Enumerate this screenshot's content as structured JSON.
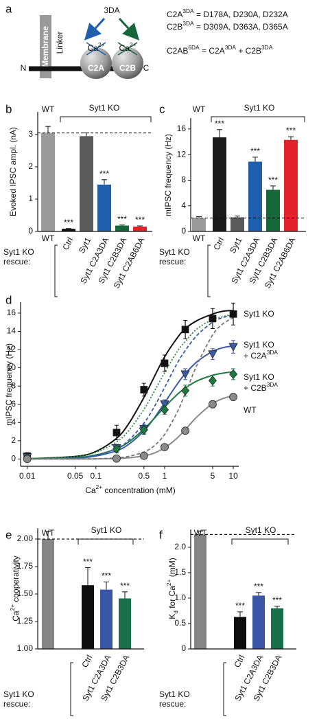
{
  "diagram": {
    "panel_label": "a",
    "membrane": "Membrane",
    "linker": "Linker",
    "n_term": "N",
    "c_term": "C",
    "domains": [
      "C2A",
      "C2B"
    ],
    "ion": [
      {
        "text": "Ca"
      },
      {
        "text": "2+",
        "sup": true
      }
    ],
    "mutation": "3DA",
    "equations": [
      [
        {
          "text": "C2A"
        },
        {
          "text": "3DA",
          "sup": true
        },
        {
          "text": " = D178A, D230A, D232A"
        }
      ],
      [
        {
          "text": "C2B"
        },
        {
          "text": "3DA",
          "sup": true
        },
        {
          "text": " = D309A, D363A, D365A"
        }
      ],
      [
        {
          "text": "C2AB"
        },
        {
          "text": "6DA",
          "sup": true
        },
        {
          "text": " = C2A"
        },
        {
          "text": "3DA",
          "sup": true
        },
        {
          "text": " + C2B"
        },
        {
          "text": "3DA",
          "sup": true
        }
      ]
    ]
  },
  "chart_data": [
    {
      "type": "bar",
      "panel_label": "b",
      "ylabel": [
        {
          "text": "Evoked IPSC ampl. (nA)"
        }
      ],
      "control_label": "WT",
      "group_label": "Syt1 KO",
      "row_label": [
        "Syt1 KO",
        "rescue:"
      ],
      "categories": [
        "WT",
        "Ctrl",
        "Syt1",
        "Syt1 C2A3DA",
        "Syt1 C2B3DA",
        "Syt1 C2AB6DA"
      ],
      "values": [
        3.05,
        0.08,
        2.95,
        1.45,
        0.18,
        0.15
      ],
      "errors": [
        0.2,
        0.01,
        0.1,
        0.15,
        0.02,
        0.02
      ],
      "colors": [
        "#9b9b9b",
        "#111111",
        "#5a5a5a",
        "#1f5fae",
        "#16663a",
        "#e3232b"
      ],
      "significance": [
        null,
        "***",
        null,
        "***",
        "***",
        "***"
      ],
      "reference_line": 3.05,
      "ylim": [
        0,
        3.7
      ],
      "yticks": [
        0,
        1,
        2,
        3
      ]
    },
    {
      "type": "bar",
      "panel_label": "c",
      "ylabel": [
        {
          "text": "mIPSC frequency (Hz)"
        }
      ],
      "control_label": "WT",
      "group_label": "Syt1 KO",
      "row_label": [
        "Syt1 KO",
        "rescue:"
      ],
      "categories": [
        "WT",
        "Ctrl",
        "Syt1",
        "Syt1 C2A3DA",
        "Syt1 C2B3DA",
        "Syt1 C2AB6DA"
      ],
      "values": [
        2.1,
        14.7,
        2.2,
        10.9,
        6.5,
        14.3
      ],
      "errors": [
        0.2,
        1.2,
        0.2,
        0.7,
        0.6,
        0.5
      ],
      "colors": [
        "#9b9b9b",
        "#1a1a1a",
        "#5a5a5a",
        "#1f5fae",
        "#16663a",
        "#e3232b"
      ],
      "significance": [
        null,
        "***",
        null,
        "***",
        "***",
        "***"
      ],
      "reference_line": 2.1,
      "ylim": [
        0,
        17.7
      ],
      "yticks": [
        0,
        4,
        8,
        12,
        16
      ]
    },
    {
      "type": "scatter",
      "panel_label": "d",
      "log_x": true,
      "xlabel": [
        {
          "text": "Ca"
        },
        {
          "text": "2+",
          "sup": true
        },
        {
          "text": " concentration (mM)"
        }
      ],
      "ylabel": [
        {
          "text": "mIPSC frequency (Hz)"
        }
      ],
      "x": [
        0.01,
        0.2,
        0.5,
        1,
        2,
        5,
        10
      ],
      "xlim": [
        0.008,
        12
      ],
      "xticks": [
        0.01,
        0.05,
        0.1,
        0.5,
        1,
        5,
        10
      ],
      "ylim": [
        -0.8,
        17.2
      ],
      "yticks": [
        0,
        2,
        4,
        6,
        8,
        10,
        12,
        14,
        16
      ],
      "series": [
        {
          "name_lines": [
            [
              {
                "text": "Syt1 KO"
              }
            ]
          ],
          "color": "#111111",
          "marker": "square",
          "values": [
            0.3,
            2.9,
            7.6,
            10.5,
            14.2,
            15.4,
            15.9
          ],
          "errors": [
            0.4,
            0.8,
            0.7,
            0.9,
            1.0,
            1.1,
            1.2
          ]
        },
        {
          "name_lines": [
            [
              {
                "text": "Syt1 KO"
              }
            ],
            [
              {
                "text": "+ C2A"
              },
              {
                "text": "3DA",
                "sup": true
              }
            ]
          ],
          "color": "#3b5ba5",
          "marker": "triangle",
          "values": [
            0.2,
            1.2,
            3.3,
            6.0,
            9.3,
            11.5,
            12.3
          ],
          "errors": [
            0.3,
            0.4,
            0.5,
            0.5,
            0.6,
            0.6,
            0.7
          ]
        },
        {
          "name_lines": [
            [
              {
                "text": "Syt1 KO"
              }
            ],
            [
              {
                "text": "+ C2B"
              },
              {
                "text": "3DA",
                "sup": true
              }
            ]
          ],
          "color": "#1c7a3e",
          "marker": "diamond",
          "values": [
            0.1,
            1.1,
            3.2,
            5.4,
            7.5,
            8.6,
            9.3
          ],
          "errors": [
            0.3,
            0.4,
            0.5,
            0.5,
            0.6,
            0.6,
            0.6
          ]
        },
        {
          "name_lines": [
            [
              {
                "text": "WT"
              }
            ]
          ],
          "color": "#8a8a8a",
          "marker": "circle",
          "values": [
            0.0,
            0.05,
            0.35,
            1.3,
            3.1,
            6.0,
            6.8
          ],
          "errors": [
            0.1,
            0.1,
            0.15,
            0.2,
            0.3,
            0.4,
            0.4
          ]
        }
      ],
      "fit_x": [
        0.01,
        0.05,
        0.1,
        0.2,
        0.3,
        0.5,
        0.7,
        1,
        1.5,
        2,
        3,
        5,
        7,
        10
      ],
      "fits": [
        {
          "color": "#111111",
          "dash": "solid",
          "values": [
            0.02,
            0.28,
            0.83,
            2.27,
            3.87,
            6.75,
            8.95,
            11.2,
            13.2,
            14.3,
            15.2,
            15.9,
            16.2,
            16.3
          ]
        },
        {
          "color": "#3b5ba5",
          "dash": "solid",
          "values": [
            0.01,
            0.11,
            0.33,
            0.91,
            1.61,
            3.08,
            4.45,
            6.16,
            8.13,
            9.36,
            10.7,
            11.8,
            12.2,
            12.4
          ]
        },
        {
          "color": "#1c7a3e",
          "dash": "solid",
          "values": [
            0.02,
            0.16,
            0.44,
            1.13,
            1.87,
            3.27,
            4.42,
            5.69,
            7.02,
            7.78,
            8.58,
            9.18,
            9.41,
            9.57
          ]
        },
        {
          "color": "#8a8a8a",
          "dash": "solid",
          "values": [
            0,
            0.004,
            0.01,
            0.06,
            0.13,
            0.34,
            0.64,
            1.21,
            2.25,
            3.22,
            4.67,
            6.07,
            6.62,
            6.95
          ]
        },
        {
          "color": "#3b5ba5",
          "dash": "dashed",
          "values": [
            0.01,
            0.14,
            0.42,
            1.16,
            2.05,
            3.93,
            5.67,
            7.84,
            10.4,
            11.9,
            13.6,
            15.0,
            15.5,
            15.8
          ]
        },
        {
          "color": "#2a8a3a",
          "dash": "dotted",
          "values": [
            0.03,
            0.27,
            0.73,
            1.87,
            3.11,
            5.44,
            7.35,
            9.47,
            11.7,
            12.9,
            14.3,
            15.3,
            15.6,
            15.9
          ]
        },
        {
          "color": "#777777",
          "dash": "dashed",
          "values": [
            0,
            0.01,
            0.03,
            0.13,
            0.29,
            0.77,
            1.43,
            2.69,
            5.02,
            7.19,
            10.4,
            13.6,
            14.8,
            15.5
          ]
        }
      ]
    },
    {
      "type": "bar",
      "panel_label": "e",
      "ylabel": [
        {
          "text": "Ca"
        },
        {
          "text": "2+",
          "sup": true
        },
        {
          "text": " cooperativity"
        }
      ],
      "control_label": "WT",
      "group_label": "Syt1 KO",
      "row_label": [
        "Syt1 KO",
        "rescue:"
      ],
      "categories": [
        null,
        "Ctrl",
        "Syt1 C2A3DA",
        "Syt1 C2B3DA"
      ],
      "values": [
        2.0,
        1.58,
        1.54,
        1.46
      ],
      "errors": [
        0.07,
        0.16,
        0.07,
        0.06
      ],
      "colors": [
        "#858585",
        "#0d0d0d",
        "#3a56a8",
        "#17704a"
      ],
      "significance": [
        null,
        "***",
        "***",
        "***"
      ],
      "reference_line": 2.0,
      "ylim": [
        1,
        2.1
      ],
      "yticks": [
        {
          "value": 1,
          "label": "1.00"
        },
        {
          "value": 1.25,
          "label": "1.25"
        },
        {
          "value": 1.5,
          "label": "1.50"
        },
        {
          "value": 1.75,
          "label": "1.75"
        },
        {
          "value": 2,
          "label": "2.00"
        }
      ]
    },
    {
      "type": "bar",
      "panel_label": "f",
      "ylabel": [
        {
          "text": "K"
        },
        {
          "text": "d",
          "sub": true
        },
        {
          "text": " for Ca"
        },
        {
          "text": "2+",
          "sup": true
        },
        {
          "text": " (mM)"
        }
      ],
      "control_label": "WT",
      "group_label": "Syt1 KO",
      "row_label": [
        "Syt1 KO",
        "rescue:"
      ],
      "categories": [
        null,
        "Ctrl",
        "Syt1 C2A3DA",
        "Syt1 C2B3DA"
      ],
      "values": [
        2.25,
        0.63,
        1.05,
        0.8
      ],
      "errors": [
        0.07,
        0.1,
        0.06,
        0.04
      ],
      "colors": [
        "#858585",
        "#0d0d0d",
        "#3a56a8",
        "#17704a"
      ],
      "significance": [
        null,
        "***",
        "***",
        "***"
      ],
      "reference_line": 2.25,
      "ylim": [
        0,
        2.35
      ],
      "yticks": [
        0,
        0.5,
        {
          "value": 1,
          "label": "1.0"
        },
        1.5,
        {
          "value": 2,
          "label": "2.0"
        }
      ]
    }
  ]
}
